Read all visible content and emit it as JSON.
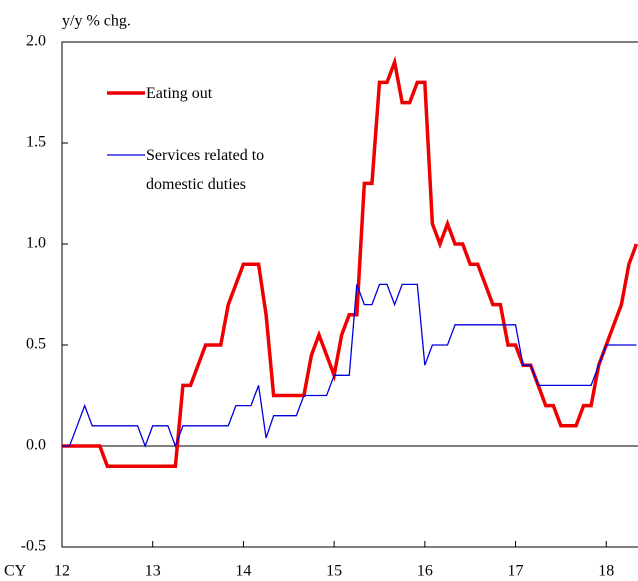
{
  "chart_data": {
    "type": "line",
    "y_axis_label": "y/y % chg.",
    "x_axis_label": "CY",
    "x": [
      12,
      12.083,
      12.167,
      12.25,
      12.333,
      12.417,
      12.5,
      12.583,
      12.667,
      12.75,
      12.833,
      12.917,
      13,
      13.083,
      13.167,
      13.25,
      13.333,
      13.417,
      13.5,
      13.583,
      13.667,
      13.75,
      13.833,
      13.917,
      14,
      14.083,
      14.167,
      14.25,
      14.333,
      14.417,
      14.5,
      14.583,
      14.667,
      14.75,
      14.833,
      14.917,
      15,
      15.083,
      15.167,
      15.25,
      15.333,
      15.417,
      15.5,
      15.583,
      15.667,
      15.75,
      15.833,
      15.917,
      16,
      16.083,
      16.167,
      16.25,
      16.333,
      16.417,
      16.5,
      16.583,
      16.667,
      16.75,
      16.833,
      16.917,
      17,
      17.083,
      17.167,
      17.25,
      17.333,
      17.417,
      17.5,
      17.583,
      17.667,
      17.75,
      17.833,
      17.917,
      18,
      18.083,
      18.167,
      18.25,
      18.333
    ],
    "series": [
      {
        "name": "Eating out",
        "color": "#ee0000",
        "width": 3.5,
        "values": [
          0,
          0,
          0,
          0,
          0,
          0,
          -0.1,
          -0.1,
          -0.1,
          -0.1,
          -0.1,
          -0.1,
          -0.1,
          -0.1,
          -0.1,
          -0.1,
          0.3,
          0.3,
          0.4,
          0.5,
          0.5,
          0.5,
          0.7,
          0.8,
          0.9,
          0.9,
          0.9,
          0.65,
          0.25,
          0.25,
          0.25,
          0.25,
          0.25,
          0.45,
          0.55,
          0.45,
          0.35,
          0.55,
          0.65,
          0.65,
          1.3,
          1.3,
          1.8,
          1.8,
          1.9,
          1.7,
          1.7,
          1.8,
          1.8,
          1.1,
          1.0,
          1.1,
          1.0,
          1.0,
          0.9,
          0.9,
          0.8,
          0.7,
          0.7,
          0.5,
          0.5,
          0.4,
          0.4,
          0.3,
          0.2,
          0.2,
          0.1,
          0.1,
          0.1,
          0.2,
          0.2,
          0.4,
          0.5,
          0.6,
          0.7,
          0.9,
          1.0
        ]
      },
      {
        "name": "Services related to domestic duties",
        "color": "#0000dd",
        "width": 1.3,
        "values": [
          0,
          0,
          0.1,
          0.2,
          0.1,
          0.1,
          0.1,
          0.1,
          0.1,
          0.1,
          0.1,
          0,
          0.1,
          0.1,
          0.1,
          0,
          0.1,
          0.1,
          0.1,
          0.1,
          0.1,
          0.1,
          0.1,
          0.2,
          0.2,
          0.2,
          0.3,
          0.04,
          0.15,
          0.15,
          0.15,
          0.15,
          0.25,
          0.25,
          0.25,
          0.25,
          0.35,
          0.35,
          0.35,
          0.8,
          0.7,
          0.7,
          0.8,
          0.8,
          0.7,
          0.8,
          0.8,
          0.8,
          0.4,
          0.5,
          0.5,
          0.5,
          0.6,
          0.6,
          0.6,
          0.6,
          0.6,
          0.6,
          0.6,
          0.6,
          0.6,
          0.4,
          0.4,
          0.3,
          0.3,
          0.3,
          0.3,
          0.3,
          0.3,
          0.3,
          0.3,
          0.4,
          0.5,
          0.5,
          0.5,
          0.5,
          0.5
        ]
      }
    ],
    "xlim": [
      12,
      18.35
    ],
    "xticks": [
      12,
      13,
      14,
      15,
      16,
      17,
      18
    ],
    "ylim": [
      -0.5,
      2.0
    ],
    "yticks": [
      {
        "value": -0.5,
        "label": "-0.5"
      },
      {
        "value": 0,
        "label": "0.0"
      },
      {
        "value": 0.5,
        "label": "0.5"
      },
      {
        "value": 1,
        "label": "1.0"
      },
      {
        "value": 1.5,
        "label": "1.5"
      },
      {
        "value": 2,
        "label": "2.0"
      }
    ],
    "zero_line": true,
    "grid": false
  }
}
